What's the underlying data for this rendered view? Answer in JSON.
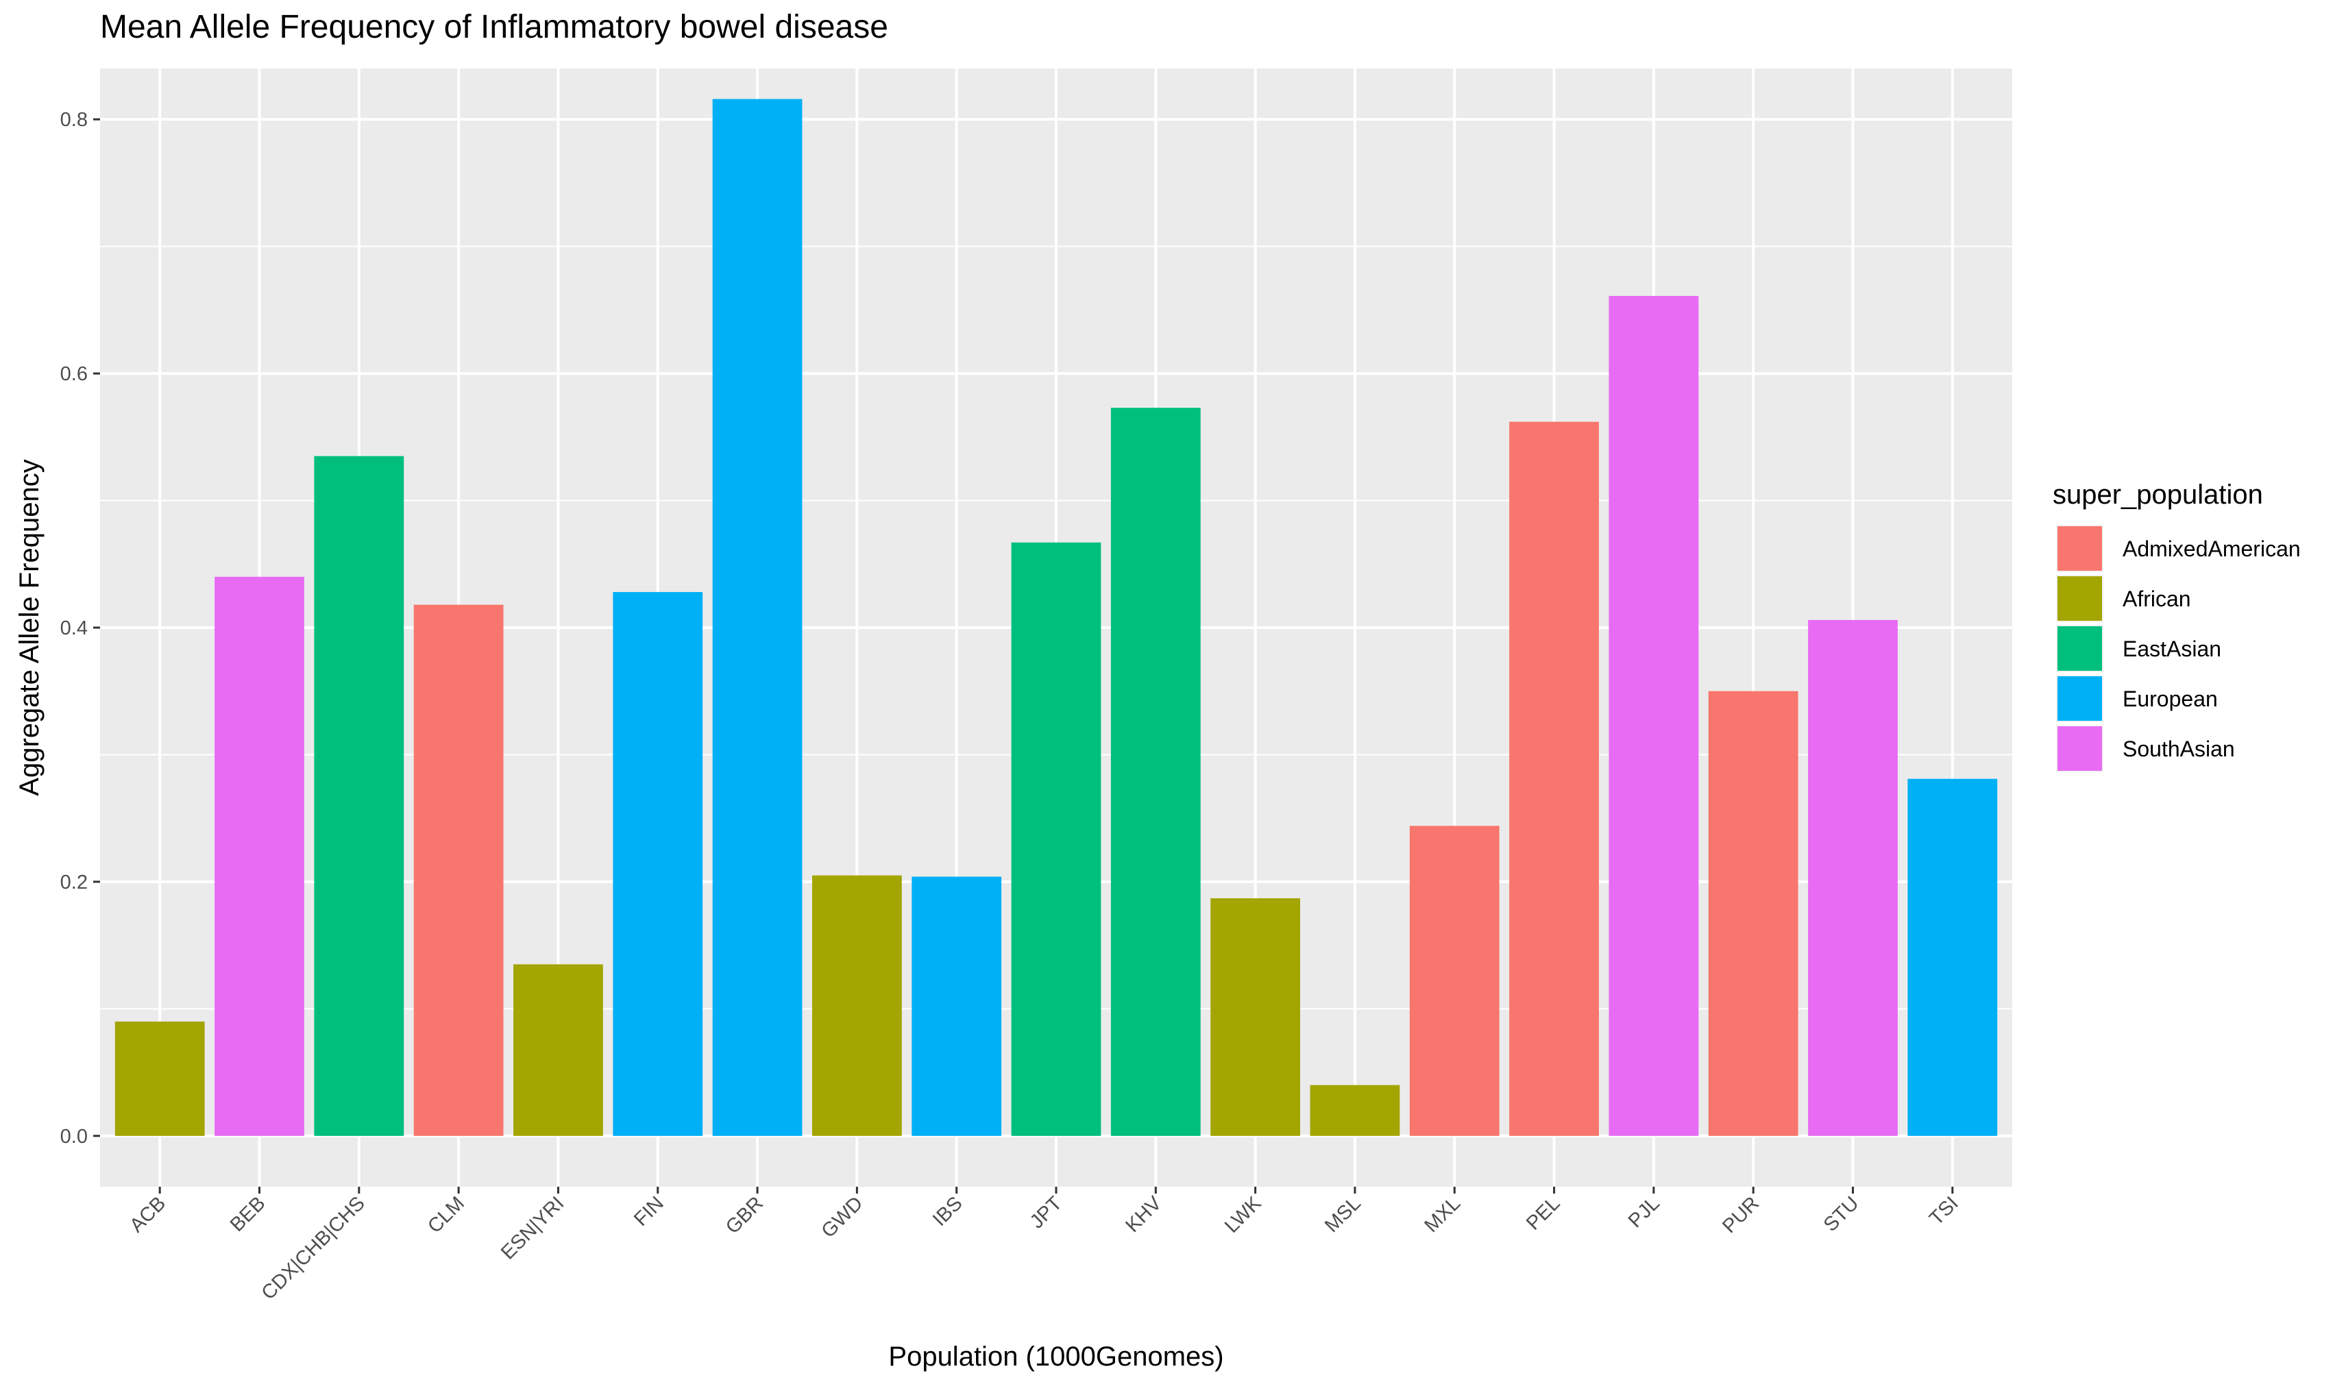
{
  "chart_data": {
    "type": "bar",
    "title": "Mean Allele Frequency of Inflammatory bowel disease",
    "xlabel": "Population (1000Genomes)",
    "ylabel": "Aggregate Allele Frequency",
    "ylim": [
      -0.04,
      0.84
    ],
    "yticks": [
      "0.0",
      "0.2",
      "0.4",
      "0.6",
      "0.8"
    ],
    "ytick_values": [
      0.0,
      0.2,
      0.4,
      0.6,
      0.8
    ],
    "grid": true,
    "legend_position": "right",
    "legend_title": "super_population",
    "categories": [
      "ACB",
      "BEB",
      "CDX|CHB|CHS",
      "CLM",
      "ESN|YRI",
      "FIN",
      "GBR",
      "GWD",
      "IBS",
      "JPT",
      "KHV",
      "LWK",
      "MSL",
      "MXL",
      "PEL",
      "PJL",
      "PUR",
      "STU",
      "TSI"
    ],
    "values": [
      0.09,
      0.44,
      0.535,
      0.418,
      0.135,
      0.428,
      0.816,
      0.205,
      0.204,
      0.467,
      0.573,
      0.187,
      0.04,
      0.244,
      0.562,
      0.661,
      0.35,
      0.406,
      0.281
    ],
    "groups": [
      "African",
      "SouthAsian",
      "EastAsian",
      "AdmixedAmerican",
      "African",
      "European",
      "European",
      "African",
      "European",
      "EastAsian",
      "EastAsian",
      "African",
      "African",
      "AdmixedAmerican",
      "AdmixedAmerican",
      "SouthAsian",
      "AdmixedAmerican",
      "SouthAsian",
      "European"
    ],
    "legend": [
      {
        "name": "AdmixedAmerican",
        "color": "#F8766D"
      },
      {
        "name": "African",
        "color": "#A3A500"
      },
      {
        "name": "EastAsian",
        "color": "#00BF7D"
      },
      {
        "name": "European",
        "color": "#00B0F6"
      },
      {
        "name": "SouthAsian",
        "color": "#E76BF3"
      }
    ],
    "colors": {
      "panel_background": "#EBEBEB",
      "grid": "#FFFFFF"
    }
  }
}
